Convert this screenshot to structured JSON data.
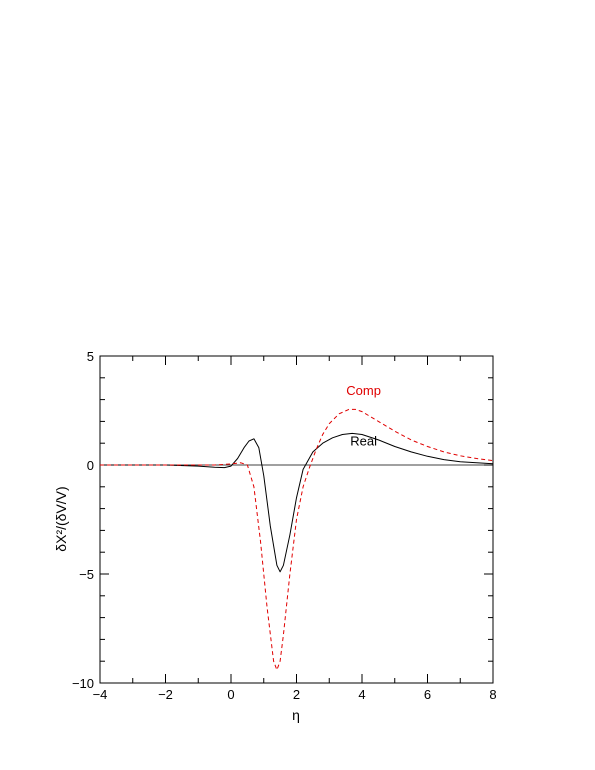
{
  "chart_data": {
    "type": "line",
    "xlabel": "η",
    "ylabel": "δX²/(δV/V)",
    "xlim": [
      -4,
      8
    ],
    "ylim": [
      -10,
      5
    ],
    "x_ticks": [
      -4,
      -2,
      0,
      2,
      4,
      6,
      8
    ],
    "y_ticks": [
      -10,
      -5,
      0,
      5
    ],
    "x_tick_labels": [
      "−4",
      "−2",
      "0",
      "2",
      "4",
      "6",
      "8"
    ],
    "y_tick_labels": [
      "−10",
      "−5",
      "0",
      "5"
    ],
    "grid": false,
    "legend": "inline labels",
    "zero_line": true,
    "series": [
      {
        "name": "Real",
        "color": "#000000",
        "style": "solid",
        "x": [
          -4,
          -3,
          -2,
          -1,
          -0.5,
          -0.2,
          0,
          0.2,
          0.4,
          0.55,
          0.7,
          0.85,
          1.0,
          1.2,
          1.4,
          1.5,
          1.6,
          1.8,
          2.0,
          2.2,
          2.5,
          2.8,
          3.1,
          3.4,
          3.7,
          4.0,
          4.5,
          5.0,
          5.5,
          6.0,
          6.5,
          7.0,
          7.5,
          8.0
        ],
        "y": [
          0,
          0,
          0,
          -0.05,
          -0.1,
          -0.12,
          -0.05,
          0.3,
          0.8,
          1.1,
          1.2,
          0.8,
          -0.5,
          -2.8,
          -4.6,
          -4.9,
          -4.6,
          -3.2,
          -1.5,
          -0.2,
          0.6,
          1.0,
          1.25,
          1.4,
          1.45,
          1.4,
          1.15,
          0.85,
          0.6,
          0.4,
          0.25,
          0.15,
          0.1,
          0.06
        ]
      },
      {
        "name": "Comp",
        "color": "#e00000",
        "style": "dashed",
        "x": [
          -4,
          -3,
          -2,
          -1,
          -0.5,
          0,
          0.3,
          0.5,
          0.7,
          0.9,
          1.1,
          1.3,
          1.4,
          1.5,
          1.6,
          1.8,
          2.0,
          2.2,
          2.4,
          2.6,
          2.8,
          3.0,
          3.3,
          3.6,
          3.8,
          4.0,
          4.5,
          5.0,
          5.5,
          6.0,
          6.5,
          7.0,
          7.5,
          8.0
        ],
        "y": [
          0,
          0,
          0,
          0,
          0,
          0.05,
          0.1,
          0,
          -1.0,
          -3.5,
          -6.5,
          -9.0,
          -9.4,
          -9.0,
          -7.8,
          -5.0,
          -2.5,
          -1.0,
          -0.1,
          0.7,
          1.4,
          1.9,
          2.35,
          2.55,
          2.55,
          2.45,
          2.0,
          1.55,
          1.15,
          0.85,
          0.6,
          0.42,
          0.3,
          0.2
        ]
      }
    ],
    "annotations": [
      {
        "text": "Comp",
        "color": "#e00000",
        "x": 4.05,
        "y": 3.2
      },
      {
        "text": "Real",
        "color": "#000000",
        "x": 4.05,
        "y": 0.9
      }
    ]
  }
}
